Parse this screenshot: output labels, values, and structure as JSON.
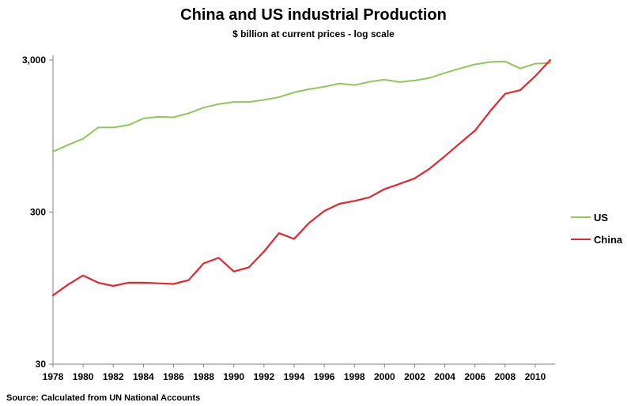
{
  "chart_data": {
    "type": "line",
    "title": "China and US industrial Production",
    "subtitle": "$ billion  at current prices - log scale",
    "source": "Source: Calculated from UN  National Accounts",
    "yscale": "log",
    "ylim": [
      30,
      3000
    ],
    "yticks": [
      30,
      300,
      3000
    ],
    "ytick_labels": [
      "30",
      "300",
      "3,000"
    ],
    "xlim": [
      1978,
      2011
    ],
    "xticks": [
      1978,
      1980,
      1982,
      1984,
      1986,
      1988,
      1990,
      1992,
      1994,
      1996,
      1998,
      2000,
      2002,
      2004,
      2006,
      2008,
      2010
    ],
    "legend_position": "right",
    "grid": false,
    "series": [
      {
        "name": "US",
        "color": "#8dc85a",
        "x": [
          1978,
          1979,
          1980,
          1981,
          1982,
          1983,
          1984,
          1985,
          1986,
          1987,
          1988,
          1989,
          1990,
          1991,
          1992,
          1993,
          1994,
          1995,
          1996,
          1997,
          1998,
          1999,
          2000,
          2001,
          2002,
          2003,
          2004,
          2005,
          2006,
          2007,
          2008,
          2009,
          2010,
          2011
        ],
        "values": [
          750,
          830,
          910,
          1080,
          1080,
          1120,
          1240,
          1270,
          1260,
          1340,
          1460,
          1540,
          1590,
          1590,
          1640,
          1710,
          1840,
          1930,
          2000,
          2100,
          2050,
          2160,
          2230,
          2150,
          2200,
          2290,
          2470,
          2640,
          2810,
          2910,
          2940,
          2640,
          2840,
          2870
        ]
      },
      {
        "name": "China",
        "color": "#e0282e",
        "x": [
          1978,
          1979,
          1980,
          1981,
          1982,
          1983,
          1984,
          1985,
          1986,
          1987,
          1988,
          1989,
          1990,
          1991,
          1992,
          1993,
          1994,
          1995,
          1996,
          1997,
          1998,
          1999,
          2000,
          2001,
          2002,
          2003,
          2004,
          2005,
          2006,
          2007,
          2008,
          2009,
          2010,
          2011
        ],
        "values": [
          85,
          100,
          115,
          103,
          98,
          103,
          103,
          102,
          101,
          107,
          138,
          150,
          122,
          130,
          165,
          218,
          200,
          255,
          305,
          340,
          355,
          375,
          425,
          460,
          500,
          580,
          700,
          850,
          1030,
          1380,
          1800,
          1900,
          2350,
          3000
        ]
      }
    ]
  }
}
